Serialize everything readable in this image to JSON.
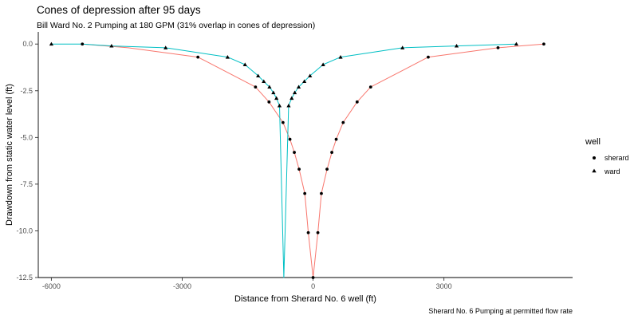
{
  "chart_data": {
    "type": "line",
    "title": "Cones of depression after 95 days",
    "subtitle": "Bill Ward No. 2 Pumping at 180 GPM (31% overlap in cones of depression)",
    "caption": "Sherard No. 6 Pumping at permitted flow rate",
    "xlabel": "Distance from Sherard No. 6 well (ft)",
    "ylabel": "Drawdown from static water level (ft)",
    "xlim": [
      -6300,
      5950
    ],
    "ylim": [
      -12.5,
      0.65
    ],
    "x_ticks": [
      -6000,
      -3000,
      0,
      3000
    ],
    "x_tick_labels": [
      "-6000",
      "-3000",
      "0",
      "3000"
    ],
    "y_ticks": [
      0,
      -2.5,
      -5,
      -7.5,
      -10,
      -12.5
    ],
    "y_tick_labels": [
      "0.0",
      "-2.5",
      "-5.0",
      "-7.5",
      "-10.0",
      "-12.5"
    ],
    "grid": false,
    "legend": {
      "title": "well",
      "position": "right",
      "entries": [
        {
          "label": "sherard",
          "shape": "circle"
        },
        {
          "label": "ward",
          "shape": "triangle"
        }
      ]
    },
    "series": [
      {
        "name": "sherard",
        "color": "#F8766D",
        "marker": "circle",
        "points": [
          [
            -5290,
            0.0
          ],
          [
            -2640,
            -0.7
          ],
          [
            -1320,
            -2.3
          ],
          [
            -1010,
            -3.1
          ],
          [
            -690,
            -4.2
          ],
          [
            -530,
            -5.1
          ],
          [
            -430,
            -5.8
          ],
          [
            -320,
            -6.7
          ],
          [
            -190,
            -8.0
          ],
          [
            -110,
            -10.1
          ],
          [
            0,
            -12.5
          ],
          [
            110,
            -10.1
          ],
          [
            190,
            -8.0
          ],
          [
            320,
            -6.7
          ],
          [
            430,
            -5.8
          ],
          [
            530,
            -5.1
          ],
          [
            690,
            -4.2
          ],
          [
            1010,
            -3.1
          ],
          [
            1320,
            -2.3
          ],
          [
            2640,
            -0.7
          ],
          [
            4240,
            -0.2
          ],
          [
            5290,
            0.0
          ]
        ],
        "line_points": [
          [
            -5290,
            0.0
          ],
          [
            -4240,
            -0.2
          ],
          [
            -2640,
            -0.7
          ],
          [
            -1320,
            -2.3
          ],
          [
            -1010,
            -3.1
          ],
          [
            -690,
            -4.2
          ],
          [
            -530,
            -5.1
          ],
          [
            -430,
            -5.8
          ],
          [
            -320,
            -6.7
          ],
          [
            -190,
            -8.0
          ],
          [
            -110,
            -10.1
          ],
          [
            0,
            -12.5
          ],
          [
            110,
            -10.1
          ],
          [
            190,
            -8.0
          ],
          [
            320,
            -6.7
          ],
          [
            430,
            -5.8
          ],
          [
            530,
            -5.1
          ],
          [
            690,
            -4.2
          ],
          [
            1010,
            -3.1
          ],
          [
            1320,
            -2.3
          ],
          [
            2640,
            -0.7
          ],
          [
            4240,
            -0.2
          ],
          [
            5290,
            0.0
          ]
        ]
      },
      {
        "name": "ward",
        "color": "#00BFC4",
        "marker": "triangle",
        "points": [
          [
            -6000,
            0.0
          ],
          [
            -4620,
            -0.1
          ],
          [
            -3380,
            -0.2
          ],
          [
            -1960,
            -0.7
          ],
          [
            -1560,
            -1.1
          ],
          [
            -1260,
            -1.7
          ],
          [
            -1130,
            -2.0
          ],
          [
            -1000,
            -2.3
          ],
          [
            -910,
            -2.6
          ],
          [
            -840,
            -2.9
          ],
          [
            -770,
            -3.3
          ],
          [
            -560,
            -3.3
          ],
          [
            -490,
            -2.9
          ],
          [
            -420,
            -2.6
          ],
          [
            -330,
            -2.3
          ],
          [
            -200,
            -2.0
          ],
          [
            -70,
            -1.7
          ],
          [
            230,
            -1.1
          ],
          [
            630,
            -0.7
          ],
          [
            2050,
            -0.2
          ],
          [
            3290,
            -0.1
          ],
          [
            4660,
            0.0
          ]
        ],
        "line_points": [
          [
            -6000,
            0.0
          ],
          [
            -5290,
            0.0
          ],
          [
            -4620,
            -0.1
          ],
          [
            -3380,
            -0.2
          ],
          [
            -1960,
            -0.7
          ],
          [
            -1560,
            -1.1
          ],
          [
            -1260,
            -1.7
          ],
          [
            -1130,
            -2.0
          ],
          [
            -1000,
            -2.3
          ],
          [
            -910,
            -2.6
          ],
          [
            -840,
            -2.9
          ],
          [
            -770,
            -3.3
          ],
          [
            -670,
            -12.5
          ],
          [
            -560,
            -3.3
          ],
          [
            -490,
            -2.9
          ],
          [
            -420,
            -2.6
          ],
          [
            -330,
            -2.3
          ],
          [
            -200,
            -2.0
          ],
          [
            -70,
            -1.7
          ],
          [
            230,
            -1.1
          ],
          [
            630,
            -0.7
          ],
          [
            2050,
            -0.2
          ],
          [
            3290,
            -0.1
          ],
          [
            4660,
            0.0
          ]
        ]
      }
    ]
  }
}
